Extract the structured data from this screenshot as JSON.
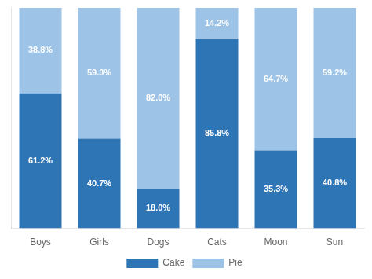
{
  "chart_data": {
    "type": "bar",
    "stacked": true,
    "categories": [
      "Boys",
      "Girls",
      "Dogs",
      "Cats",
      "Moon",
      "Sun"
    ],
    "series": [
      {
        "name": "Cake",
        "color": "#2E75B6",
        "values": [
          61.2,
          40.7,
          18.0,
          85.8,
          35.3,
          40.8
        ],
        "value_labels": [
          "61.2%",
          "40.7%",
          "18.0%",
          "85.8%",
          "35.3%",
          "40.8%"
        ]
      },
      {
        "name": "Pie",
        "color": "#9DC3E6",
        "values": [
          38.8,
          59.3,
          82.0,
          14.2,
          64.7,
          59.2
        ],
        "value_labels": [
          "38.8%",
          "59.3%",
          "82.0%",
          "14.2%",
          "64.7%",
          "59.2%"
        ]
      }
    ],
    "ylim": [
      0,
      100
    ],
    "yticks": [],
    "tick_labels": "x",
    "grid": false,
    "legend": "bottom",
    "data_labels": true
  }
}
